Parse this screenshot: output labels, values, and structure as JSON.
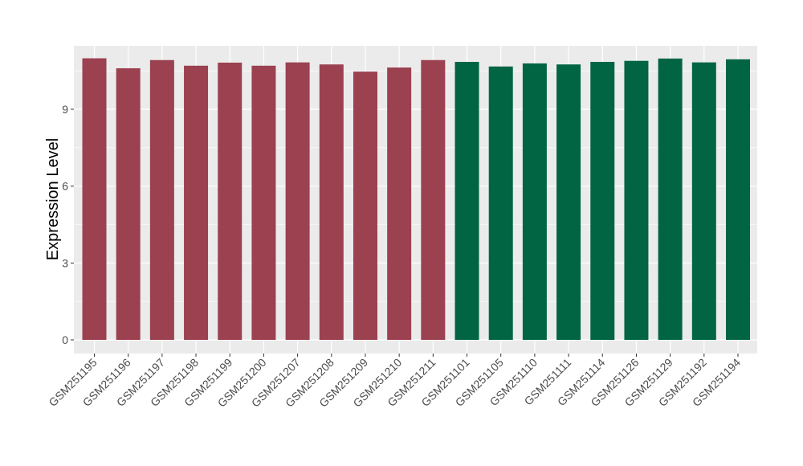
{
  "chart_data": {
    "type": "bar",
    "title": "",
    "xlabel": "",
    "ylabel": "Expression Level",
    "ylim": [
      0,
      11.4
    ],
    "yticks": [
      0,
      3,
      6,
      9
    ],
    "grid": true,
    "legend": "none",
    "categories": [
      "GSM251195",
      "GSM251196",
      "GSM251197",
      "GSM251198",
      "GSM251199",
      "GSM251200",
      "GSM251207",
      "GSM251208",
      "GSM251209",
      "GSM251210",
      "GSM251211",
      "GSM251101",
      "GSM251105",
      "GSM251110",
      "GSM251111",
      "GSM251114",
      "GSM251126",
      "GSM251129",
      "GSM251192",
      "GSM251194"
    ],
    "values": [
      10.99,
      10.6,
      10.92,
      10.7,
      10.82,
      10.7,
      10.83,
      10.75,
      10.47,
      10.63,
      10.92,
      10.85,
      10.67,
      10.79,
      10.75,
      10.85,
      10.89,
      10.98,
      10.83,
      10.95
    ],
    "groups": [
      0,
      0,
      0,
      0,
      0,
      0,
      0,
      0,
      0,
      0,
      0,
      1,
      1,
      1,
      1,
      1,
      1,
      1,
      1,
      1
    ],
    "group_colors": [
      "#9b4150",
      "#016543"
    ],
    "panel_background": "#ebebeb",
    "grid_color": "#ffffff"
  }
}
